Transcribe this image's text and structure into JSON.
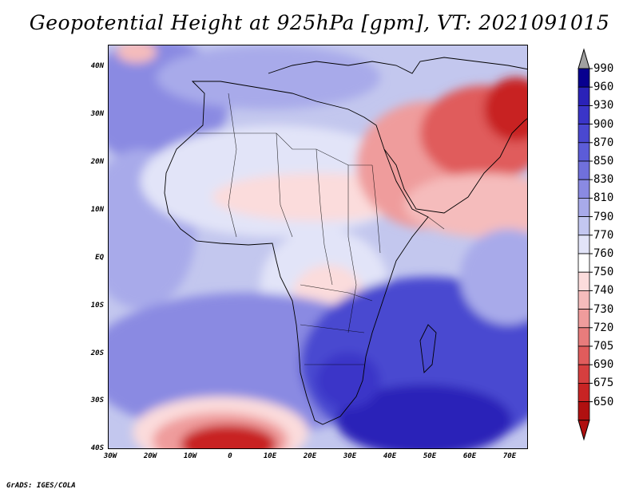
{
  "title": "Geopotential Height at 925hPa [gpm], VT: 2021091015",
  "credit": "GrADS: IGES/COLA",
  "lat_labels": [
    "40N",
    "30N",
    "20N",
    "10N",
    "EQ",
    "10S",
    "20S",
    "30S",
    "40S"
  ],
  "lon_labels": [
    "30W",
    "20W",
    "10W",
    "0",
    "10E",
    "20E",
    "30E",
    "40E",
    "50E",
    "60E",
    "70E"
  ],
  "colorbar": {
    "levels": [
      "990",
      "960",
      "930",
      "900",
      "870",
      "850",
      "830",
      "810",
      "790",
      "770",
      "760",
      "750",
      "740",
      "730",
      "720",
      "705",
      "690",
      "675",
      "650"
    ],
    "colors": [
      "#08008f",
      "#2a22b8",
      "#3a35c8",
      "#4a48d0",
      "#5c5cd8",
      "#7070dc",
      "#8a8ae2",
      "#a8aaea",
      "#c3c7f0",
      "#e2e4f8",
      "#ffffff",
      "#fbdcdc",
      "#f5bcbc",
      "#ef9c9c",
      "#e87c7c",
      "#e05c5c",
      "#d63f3f",
      "#c82424",
      "#b01010"
    ],
    "over_color": "#a0a0a0",
    "under_color": "#b01010"
  }
}
